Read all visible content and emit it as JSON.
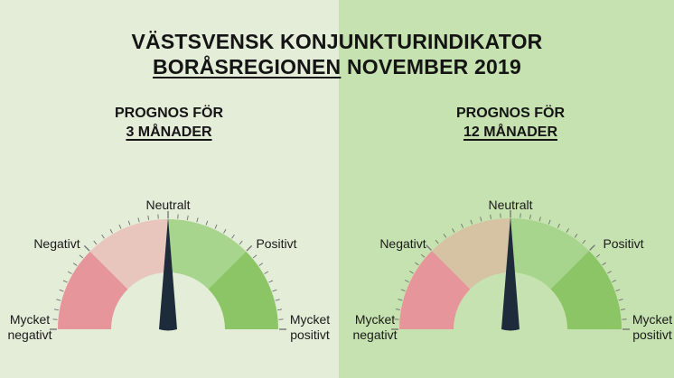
{
  "title": {
    "line1": "VÄSTSVENSK KONJUNKTURINDIKATOR",
    "region": "BORÅSREGIONEN",
    "period": "NOVEMBER 2019"
  },
  "gauges": [
    {
      "heading": "PROGNOS FÖR",
      "horizon": "3 MÅNADER",
      "needle_fraction": 0.5,
      "labels": {
        "very_negative_1": "Mycket",
        "very_negative_2": "negativt",
        "negative": "Negativt",
        "neutral": "Neutralt",
        "positive": "Positivt",
        "very_positive_1": "Mycket",
        "very_positive_2": "positivt"
      }
    },
    {
      "heading": "PROGNOS FÖR",
      "horizon": "12 MÅNADER",
      "needle_fraction": 0.5,
      "labels": {
        "very_negative_1": "Mycket",
        "very_negative_2": "negativt",
        "negative": "Negativt",
        "neutral": "Neutralt",
        "positive": "Positivt",
        "very_positive_1": "Mycket",
        "very_positive_2": "positivt"
      }
    }
  ],
  "colors": {
    "bg_left": "#e3edd8",
    "bg_right": "#c6e2b0",
    "very_negative": "#e6969a",
    "negative_left": "#e8c6bd",
    "negative_right": "#d6c3a4",
    "positive": "#a8d58d",
    "very_positive": "#8cc566",
    "needle": "#1d2b3a"
  }
}
